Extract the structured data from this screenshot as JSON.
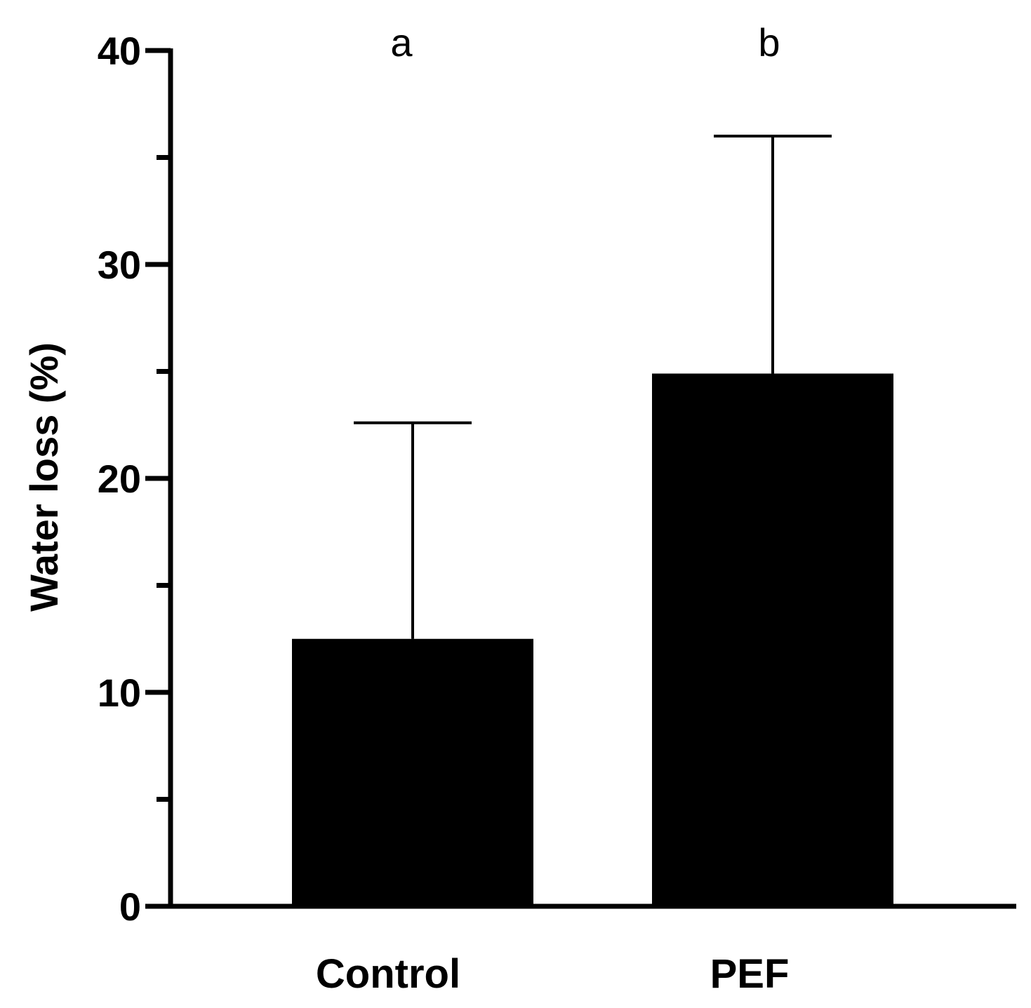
{
  "chart_data": {
    "type": "bar",
    "title": "",
    "xlabel": "",
    "ylabel": "Water loss (%)",
    "categories": [
      "Control",
      "PEF"
    ],
    "values": [
      12.5,
      24.9
    ],
    "error_upper": [
      22.6,
      36.0
    ],
    "annotations": [
      "a",
      "b"
    ],
    "ylim": [
      0,
      40
    ],
    "yticks_major": [
      0,
      10,
      20,
      30,
      40
    ],
    "yticks_major_labels": [
      "0",
      "10",
      "20",
      "30",
      "40"
    ],
    "yticks_minor": [
      5,
      15,
      25,
      35
    ],
    "grid": false,
    "legend": "none",
    "bar_color": "#000000",
    "axis_color": "#000000"
  }
}
